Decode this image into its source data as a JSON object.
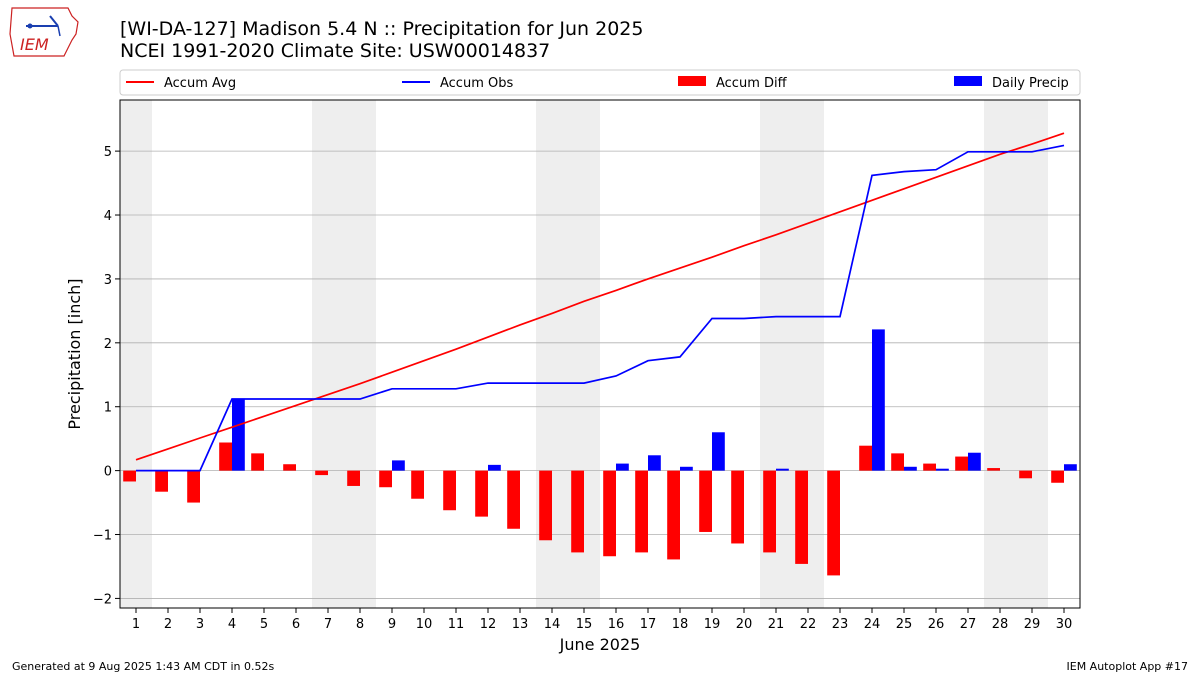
{
  "logo": {
    "text": "IEM"
  },
  "title": {
    "line1": "[WI-DA-127] Madison 5.4 N :: Precipitation for Jun 2025",
    "line2": "NCEI 1991-2020 Climate Site: USW00014837"
  },
  "footer": {
    "left": "Generated at 9 Aug 2025 1:43 AM CDT in 0.52s",
    "right": "IEM Autoplot App #17"
  },
  "colors": {
    "accum_avg": "#ff0000",
    "accum_obs": "#0000ff",
    "accum_diff": "#ff0000",
    "daily_precip": "#0000ff",
    "weekend_shade": "#eeeeee",
    "grid": "#b0b0b0"
  },
  "chart_data": {
    "type": "bar",
    "xlabel": "June 2025",
    "ylabel": "Precipitation [inch]",
    "xlim": [
      0.5,
      30.5
    ],
    "ylim": [
      -2.15,
      5.8
    ],
    "x_ticks": [
      1,
      2,
      3,
      4,
      5,
      6,
      7,
      8,
      9,
      10,
      11,
      12,
      13,
      14,
      15,
      16,
      17,
      18,
      19,
      20,
      21,
      22,
      23,
      24,
      25,
      26,
      27,
      28,
      29,
      30
    ],
    "y_ticks": [
      -2,
      -1,
      0,
      1,
      2,
      3,
      4,
      5
    ],
    "grid": "horizontal",
    "legend": [
      "Accum Avg",
      "Accum Obs",
      "Accum Diff",
      "Daily Precip"
    ],
    "legend_placement": "top, above plot",
    "shaded_weekend_spans": [
      [
        0.5,
        1.5
      ],
      [
        6.5,
        8.5
      ],
      [
        13.5,
        15.5
      ],
      [
        20.5,
        22.5
      ],
      [
        27.5,
        29.5
      ]
    ],
    "days": [
      1,
      2,
      3,
      4,
      5,
      6,
      7,
      8,
      9,
      10,
      11,
      12,
      13,
      14,
      15,
      16,
      17,
      18,
      19,
      20,
      21,
      22,
      23,
      24,
      25,
      26,
      27,
      28,
      29,
      30
    ],
    "series": [
      {
        "name": "Accum Avg",
        "kind": "line",
        "values": [
          0.17,
          0.34,
          0.51,
          0.68,
          0.85,
          1.02,
          1.19,
          1.36,
          1.54,
          1.72,
          1.9,
          2.09,
          2.28,
          2.46,
          2.65,
          2.82,
          3.0,
          3.17,
          3.34,
          3.52,
          3.69,
          3.87,
          4.05,
          4.23,
          4.41,
          4.59,
          4.77,
          4.95,
          5.11,
          5.28
        ]
      },
      {
        "name": "Accum Obs",
        "kind": "line",
        "values": [
          0.0,
          0.0,
          0.0,
          1.12,
          1.12,
          1.12,
          1.12,
          1.12,
          1.28,
          1.28,
          1.28,
          1.37,
          1.37,
          1.37,
          1.37,
          1.48,
          1.72,
          1.78,
          2.38,
          2.38,
          2.41,
          2.41,
          2.41,
          4.62,
          4.68,
          4.71,
          4.99,
          4.99,
          4.99,
          5.09
        ]
      },
      {
        "name": "Accum Diff",
        "kind": "bar",
        "values": [
          -0.17,
          -0.33,
          -0.5,
          0.44,
          0.27,
          0.1,
          -0.07,
          -0.24,
          -0.26,
          -0.44,
          -0.62,
          -0.72,
          -0.91,
          -1.09,
          -1.28,
          -1.34,
          -1.28,
          -1.39,
          -0.96,
          -1.14,
          -1.28,
          -1.46,
          -1.64,
          0.39,
          0.27,
          0.11,
          0.22,
          0.04,
          -0.12,
          -0.19
        ]
      },
      {
        "name": "Daily Precip",
        "kind": "bar",
        "values": [
          0,
          0,
          0,
          1.12,
          0,
          0,
          0,
          0,
          0.16,
          0,
          0,
          0.09,
          0,
          0,
          0,
          0.11,
          0.24,
          0.06,
          0.6,
          0,
          0.03,
          0,
          0,
          2.21,
          0.06,
          0.03,
          0.28,
          0,
          0,
          0.1
        ]
      }
    ]
  }
}
